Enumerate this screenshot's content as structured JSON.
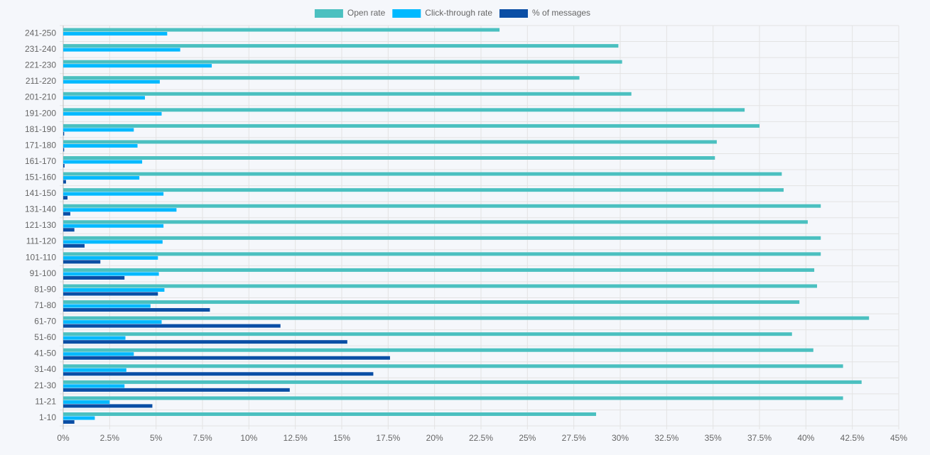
{
  "chart_data": {
    "type": "bar",
    "orientation": "horizontal",
    "categories": [
      "241-250",
      "231-240",
      "221-230",
      "211-220",
      "201-210",
      "191-200",
      "181-190",
      "171-180",
      "161-170",
      "151-160",
      "141-150",
      "131-140",
      "121-130",
      "111-120",
      "101-110",
      "91-100",
      "81-90",
      "71-80",
      "61-70",
      "51-60",
      "41-50",
      "31-40",
      "21-30",
      "11-21",
      "1-10"
    ],
    "series": [
      {
        "name": "Open rate",
        "color": "#4bc0c0",
        "values": [
          23.5,
          29.9,
          30.1,
          27.8,
          30.6,
          36.7,
          37.5,
          35.2,
          35.1,
          38.7,
          38.8,
          40.8,
          40.1,
          40.8,
          40.8,
          40.45,
          40.6,
          39.65,
          43.4,
          39.25,
          40.4,
          42.0,
          43.0,
          42.0,
          28.7
        ]
      },
      {
        "name": "Click-through rate",
        "color": "#00b9ff",
        "values": [
          5.6,
          6.3,
          8.0,
          5.2,
          4.4,
          5.3,
          3.8,
          4.0,
          4.25,
          4.1,
          5.4,
          6.1,
          5.4,
          5.35,
          5.1,
          5.15,
          5.45,
          4.7,
          5.3,
          3.35,
          3.8,
          3.4,
          3.3,
          2.5,
          1.7
        ]
      },
      {
        "name": "% of messages",
        "color": "#0a4ea5",
        "values": [
          0,
          0,
          0,
          0,
          0,
          0,
          0.05,
          0.05,
          0.07,
          0.15,
          0.23,
          0.38,
          0.6,
          1.15,
          2.0,
          3.3,
          5.1,
          7.9,
          11.7,
          15.3,
          17.6,
          16.7,
          12.2,
          4.8,
          0.6
        ]
      }
    ],
    "xlim": [
      0,
      45
    ],
    "xticks": [
      {
        "value": 0,
        "label": "0%"
      },
      {
        "value": 2.5,
        "label": "2.5%"
      },
      {
        "value": 5,
        "label": "5%"
      },
      {
        "value": 7.5,
        "label": "7.5%"
      },
      {
        "value": 10,
        "label": "10%"
      },
      {
        "value": 12.5,
        "label": "12.5%"
      },
      {
        "value": 15,
        "label": "15%"
      },
      {
        "value": 17.5,
        "label": "17.5%"
      },
      {
        "value": 20,
        "label": "20%"
      },
      {
        "value": 22.5,
        "label": "22.5%"
      },
      {
        "value": 25,
        "label": "25%"
      },
      {
        "value": 27.5,
        "label": "27.5%"
      },
      {
        "value": 30,
        "label": "30%"
      },
      {
        "value": 32.5,
        "label": "32.5%"
      },
      {
        "value": 35,
        "label": "35%"
      },
      {
        "value": 37.5,
        "label": "37.5%"
      },
      {
        "value": 40,
        "label": "40%"
      },
      {
        "value": 42.5,
        "label": "42.5%"
      },
      {
        "value": 45,
        "label": "45%"
      }
    ],
    "grid": true,
    "legend": "top"
  }
}
